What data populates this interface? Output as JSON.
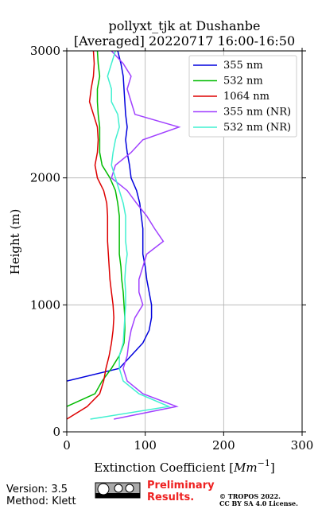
{
  "chart_data": {
    "type": "line",
    "title": "pollyxt_tjk at Dushanbe",
    "subtitle": "[Averaged] 20220717 16:00-16:50",
    "xlabel": {
      "text": "Extinction Coefficient [",
      "unit": "Mm",
      "exponent": "−1",
      "close": "]"
    },
    "ylabel": "Height (m)",
    "y": [
      0,
      100,
      200,
      300,
      400,
      500,
      600,
      700,
      800,
      900,
      1000,
      1100,
      1200,
      1300,
      1400,
      1500,
      1600,
      1700,
      1800,
      1900,
      2000,
      2100,
      2200,
      2300,
      2400,
      2500,
      2600,
      2700,
      2800,
      2900,
      3000
    ],
    "series": [
      {
        "name": "355 nm",
        "color": "#0000dd",
        "values": [
          null,
          null,
          null,
          null,
          0,
          67,
          82,
          97,
          105,
          108,
          108,
          105,
          102,
          100,
          97,
          97,
          97,
          95,
          93,
          89,
          82,
          80,
          77,
          75,
          77,
          75,
          74,
          73,
          72,
          69,
          65
        ]
      },
      {
        "name": "532 nm",
        "color": "#00bb00",
        "values": [
          null,
          null,
          0,
          36,
          45,
          57,
          67,
          73,
          74,
          74,
          73,
          72,
          70,
          69,
          67,
          67,
          67,
          67,
          65,
          62,
          55,
          45,
          42,
          42,
          42,
          40,
          39,
          39,
          42,
          40,
          39
        ]
      },
      {
        "name": "1064 nm",
        "color": "#dd0000",
        "values": [
          null,
          0,
          26,
          42,
          47,
          50,
          54,
          57,
          59,
          60,
          59,
          57,
          55,
          54,
          53,
          52,
          52,
          52,
          51,
          47,
          39,
          36,
          39,
          40,
          39,
          34,
          29,
          31,
          34,
          35,
          34
        ]
      },
      {
        "name": "355 nm (NR)",
        "color": "#a040ff",
        "values": [
          null,
          60,
          140,
          97,
          77,
          72,
          77,
          79,
          82,
          87,
          97,
          92,
          92,
          97,
          102,
          123,
          112,
          102,
          89,
          77,
          57,
          62,
          82,
          97,
          143,
          87,
          82,
          77,
          82,
          72,
          57
        ]
      },
      {
        "name": "532 nm (NR)",
        "color": "#40f0d0",
        "values": [
          null,
          30,
          130,
          92,
          72,
          67,
          67,
          72,
          73,
          74,
          75,
          75,
          74,
          75,
          77,
          75,
          75,
          75,
          72,
          67,
          62,
          57,
          59,
          62,
          67,
          65,
          57,
          57,
          52,
          57,
          62
        ]
      }
    ],
    "xlim": [
      0,
      300
    ],
    "xticks": [
      0,
      100,
      200,
      300
    ],
    "ylim": [
      0,
      3000
    ],
    "yticks": [
      0,
      1000,
      2000,
      3000
    ],
    "grid": true,
    "legend": "upper right",
    "footer": {
      "version": "Version: 3.5",
      "method": "Method: Klett",
      "notice": "Preliminary Results.",
      "copyright": "© TROPOS 2022.",
      "license": "CC BY SA 4.0 License."
    }
  }
}
